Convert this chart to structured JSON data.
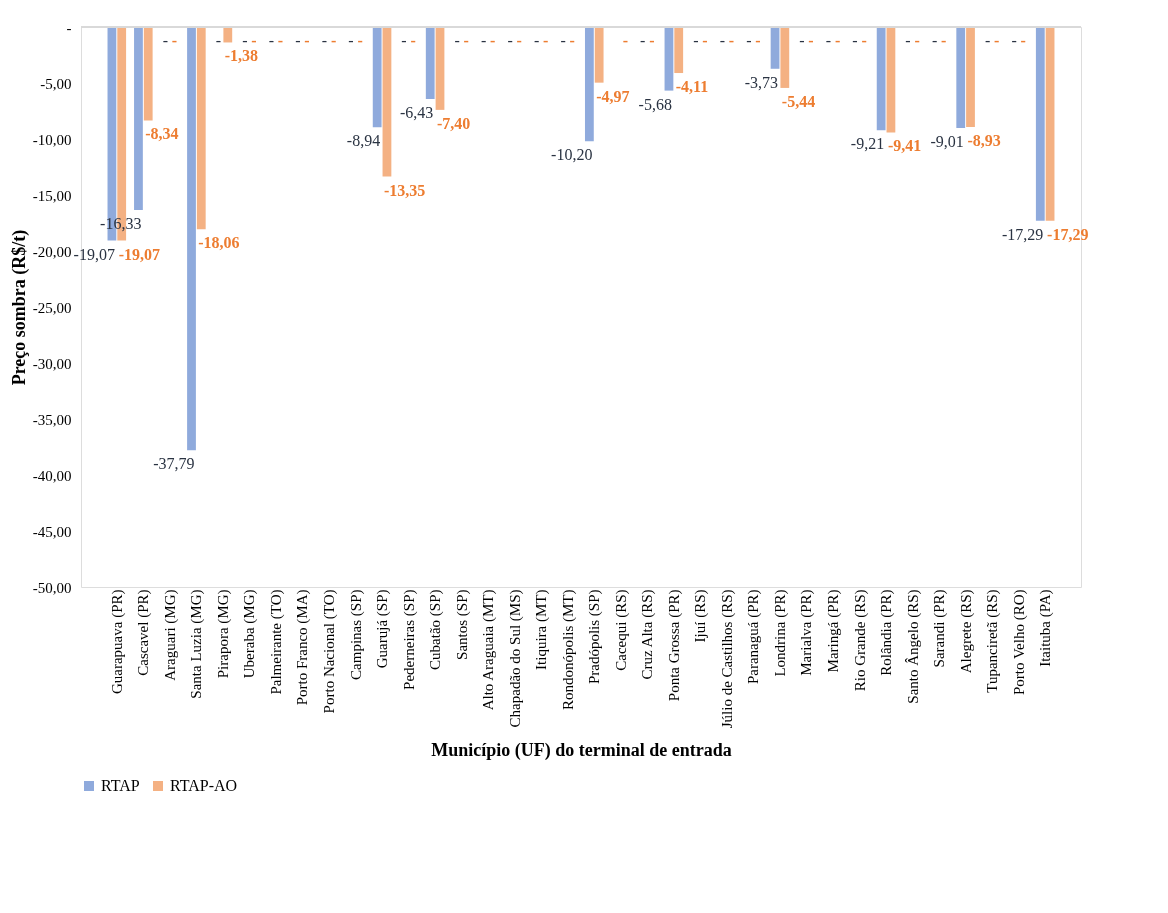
{
  "chart_data": {
    "type": "bar",
    "xlabel": "Município  (UF) do terminal de entrada",
    "ylabel": "Preço sombra  (R$/t)",
    "categories": [
      "Guarapuava (PR)",
      "Cascavel (PR)",
      "Araguari (MG)",
      "Santa Luzia (MG)",
      "Pirapora (MG)",
      "Uberaba (MG)",
      "Palmeirante (TO)",
      "Porto Franco (MA)",
      "Porto Nacional (TO)",
      "Campinas (SP)",
      "Guarujá (SP)",
      "Pederneiras (SP)",
      "Cubatão (SP)",
      "Santos (SP)",
      "Alto Araguaia (MT)",
      "Chapadão do Sul (MS)",
      "Itiquira (MT)",
      "Rondonópolis (MT)",
      "Pradópolis (SP)",
      "Cacequi (RS)",
      "Cruz Alta (RS)",
      "Ponta Grossa (PR)",
      "Ijuí (RS)",
      "Júlio de Castilhos (RS)",
      "Paranaguá (PR)",
      "Londrina (PR)",
      "Marialva (PR)",
      "Maringá (PR)",
      "Rio Grande (RS)",
      "Rolândia (PR)",
      "Santo Ângelo (RS)",
      "Sarandi (PR)",
      "Alegrete (RS)",
      "Tupanciretã (RS)",
      "Porto Velho (RO)",
      "Itaituba (PA)"
    ],
    "series": [
      {
        "name": "RTAP",
        "color": "#8faadc",
        "values": [
          -19.07,
          -16.33,
          0,
          -37.79,
          0,
          0,
          0,
          0,
          0,
          0,
          -8.94,
          0,
          -6.43,
          0,
          0,
          0,
          0,
          0,
          -10.2,
          0,
          0,
          -5.68,
          0,
          0,
          0,
          -3.73,
          0,
          0,
          0,
          -9.21,
          0,
          0,
          -9.01,
          0,
          0,
          -17.29
        ],
        "value_labels": [
          "-19,07",
          "-16,33",
          "-",
          "-37,79",
          "-",
          "-",
          "-",
          "-",
          "-",
          "-",
          "-8,94",
          "-",
          "-6,43",
          "-",
          "-",
          "-",
          "-",
          "-",
          "-10,20",
          null,
          "-",
          "-5,68",
          "-",
          "-",
          "-",
          "-3,73",
          "-",
          "-",
          "-",
          "-9,21",
          "-",
          "-",
          "-9,01",
          "-",
          "-",
          "-17,29"
        ]
      },
      {
        "name": "RTAP-AO",
        "color": "#f4b183",
        "values": [
          -19.07,
          -8.34,
          0,
          -18.06,
          -1.38,
          0,
          0,
          0,
          0,
          0,
          -13.35,
          0,
          -7.4,
          0,
          0,
          0,
          0,
          0,
          -4.97,
          0,
          0,
          -4.11,
          0,
          0,
          0,
          -5.44,
          0,
          0,
          0,
          -9.41,
          0,
          0,
          -8.93,
          0,
          0,
          -17.29
        ],
        "value_labels": [
          "-19,07",
          "-8,34",
          "-",
          "-18,06",
          "-1,38",
          "-",
          "-",
          "-",
          "-",
          "-",
          "-13,35",
          "-",
          "-7,40",
          "-",
          "-",
          "-",
          "-",
          "-",
          "-4,97",
          "-",
          "-",
          "-4,11",
          "-",
          "-",
          "-",
          "-5,44",
          "-",
          "-",
          "-",
          "-9,41",
          "-",
          "-",
          "-8,93",
          "-",
          "-",
          "-17,29"
        ]
      }
    ],
    "ylim": [
      -50,
      0
    ],
    "yticks": [
      {
        "value": -50,
        "label": "-50,00"
      },
      {
        "value": -45,
        "label": "-45,00"
      },
      {
        "value": -40,
        "label": "-40,00"
      },
      {
        "value": -35,
        "label": "-35,00"
      },
      {
        "value": -30,
        "label": "-30,00"
      },
      {
        "value": -25,
        "label": "-25,00"
      },
      {
        "value": -20,
        "label": "-20,00"
      },
      {
        "value": -15,
        "label": "-15,00"
      },
      {
        "value": -10,
        "label": "-10,00"
      },
      {
        "value": -5,
        "label": "-5,00"
      },
      {
        "value": 0,
        "label": "-"
      }
    ],
    "grid": false,
    "legend": "bottom"
  }
}
